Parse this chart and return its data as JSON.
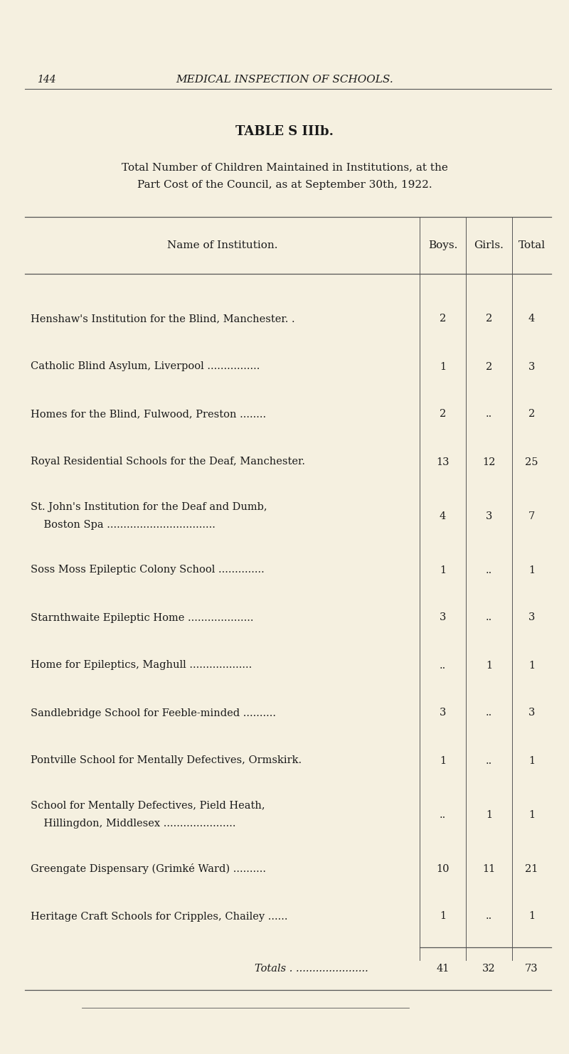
{
  "page_number": "144",
  "header_text": "MEDICAL INSPECTION OF SCHOOLS.",
  "table_title": "TABLE S IIIb.",
  "subtitle_line1": "Total Number of Children Maintained in Institutions, at the",
  "subtitle_line2": "Part Cost of the Council, as at September 30th, 1922.",
  "col_headers": [
    "Name of Institution.",
    "Boys.",
    "Girls.",
    "Total"
  ],
  "rows": [
    {
      "name": "Henshaw's Institution for the Blind, Manchester. .",
      "name2": "",
      "boys": "2",
      "girls": "2",
      "total": "4"
    },
    {
      "name": "Catholic Blind Asylum, Liverpool ................",
      "name2": "",
      "boys": "1",
      "girls": "2",
      "total": "3"
    },
    {
      "name": "Homes for the Blind, Fulwood, Preston ........",
      "name2": "",
      "boys": "2",
      "girls": "..",
      "total": "2"
    },
    {
      "name": "Royal Residential Schools for the Deaf, Manchester.",
      "name2": "",
      "boys": "13",
      "girls": "12",
      "total": "25"
    },
    {
      "name": "St. John's Institution for the Deaf and Dumb,",
      "name2": "    Boston Spa .................................",
      "boys": "4",
      "girls": "3",
      "total": "7"
    },
    {
      "name": "Soss Moss Epileptic Colony School ..............",
      "name2": "",
      "boys": "1",
      "girls": "..",
      "total": "1"
    },
    {
      "name": "Starnthwaite Epileptic Home ....................",
      "name2": "",
      "boys": "3",
      "girls": "..",
      "total": "3"
    },
    {
      "name": "Home for Epileptics, Maghull ...................",
      "name2": "",
      "boys": "..",
      "girls": "1",
      "total": "1"
    },
    {
      "name": "Sandlebridge School for Feeble-minded ..........",
      "name2": "",
      "boys": "3",
      "girls": "..",
      "total": "3"
    },
    {
      "name": "Pontville School for Mentally Defectives, Ormskirk.",
      "name2": "",
      "boys": "1",
      "girls": "..",
      "total": "1"
    },
    {
      "name": "School for Mentally Defectives, Pield Heath,",
      "name2": "    Hillingdon, Middlesex ......................",
      "boys": "..",
      "girls": "1",
      "total": "1"
    },
    {
      "name": "Greengate Dispensary (Grimké Ward) ..........",
      "name2": "",
      "boys": "10",
      "girls": "11",
      "total": "21"
    },
    {
      "name": "Heritage Craft Schools for Cripples, Chailey ......",
      "name2": "",
      "boys": "1",
      "girls": "..",
      "total": "1"
    }
  ],
  "totals_label": "Totals . ......................",
  "totals_boys": "41",
  "totals_girls": "32",
  "totals_total": "73",
  "bg_color": "#f5f0e0",
  "text_color": "#1a1a1a",
  "line_color": "#555555"
}
